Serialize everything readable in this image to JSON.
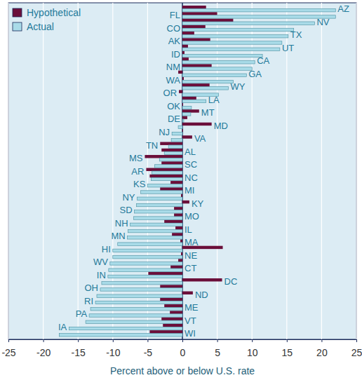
{
  "chart_data": {
    "type": "bar",
    "orientation": "horizontal",
    "xlabel": "Percent above or below U.S. rate",
    "categories": [
      "AZ",
      "FL",
      "NV",
      "CO",
      "TX",
      "AK",
      "UT",
      "ID",
      "CA",
      "NM",
      "GA",
      "WA",
      "WY",
      "OR",
      "LA",
      "OK",
      "MT",
      "DE",
      "MD",
      "NJ",
      "VA",
      "TN",
      "AL",
      "MS",
      "SC",
      "AR",
      "NC",
      "KS",
      "MI",
      "NY",
      "KY",
      "SD",
      "MO",
      "NH",
      "IL",
      "MN",
      "MA",
      "HI",
      "NE",
      "WV",
      "CT",
      "IN",
      "DC",
      "OH",
      "ND",
      "RI",
      "ME",
      "PA",
      "VT",
      "IA",
      "WI"
    ],
    "series": [
      {
        "name": "Hypothetical",
        "color": "#6b0f3a",
        "values": [
          3.4,
          5.0,
          7.3,
          3.3,
          1.7,
          4.0,
          0.8,
          0.3,
          0.9,
          4.2,
          -0.6,
          0.2,
          3.9,
          -0.5,
          2.0,
          0.1,
          2.4,
          0.7,
          4.2,
          0.1,
          1.4,
          -3.2,
          -3.0,
          -5.4,
          -3.0,
          -5.2,
          -4.7,
          -1.7,
          -3.2,
          -0.2,
          1.0,
          -1.2,
          -1.2,
          -2.6,
          -1.0,
          -1.5,
          -0.3,
          5.8,
          -0.2,
          -0.6,
          -1.7,
          -4.9,
          5.7,
          -3.2,
          1.5,
          -3.2,
          -2.6,
          -1.8,
          -3.0,
          -2.8,
          -4.7
        ]
      },
      {
        "name": "Actual",
        "color": "#a9dbe8",
        "values": [
          22.0,
          22.0,
          19.0,
          16.0,
          15.2,
          14.3,
          14.0,
          11.5,
          10.4,
          10.0,
          9.2,
          7.3,
          6.6,
          5.2,
          3.4,
          1.3,
          1.2,
          0.2,
          -0.6,
          -1.5,
          -1.6,
          -2.0,
          -2.6,
          -3.3,
          -4.0,
          -4.4,
          -4.5,
          -5.0,
          -6.0,
          -6.5,
          -6.6,
          -6.9,
          -7.0,
          -7.5,
          -7.8,
          -7.9,
          -9.3,
          -10.0,
          -10.0,
          -10.4,
          -10.6,
          -10.7,
          -11.6,
          -11.8,
          -12.3,
          -12.5,
          -13.2,
          -13.4,
          -13.9,
          -16.3,
          -17.7
        ]
      }
    ],
    "xlim": [
      -25,
      25
    ],
    "xticks": [
      -25,
      -20,
      -15,
      -10,
      -5,
      0,
      5,
      10,
      15,
      20,
      25
    ],
    "grid": true,
    "legend": "upper left"
  }
}
